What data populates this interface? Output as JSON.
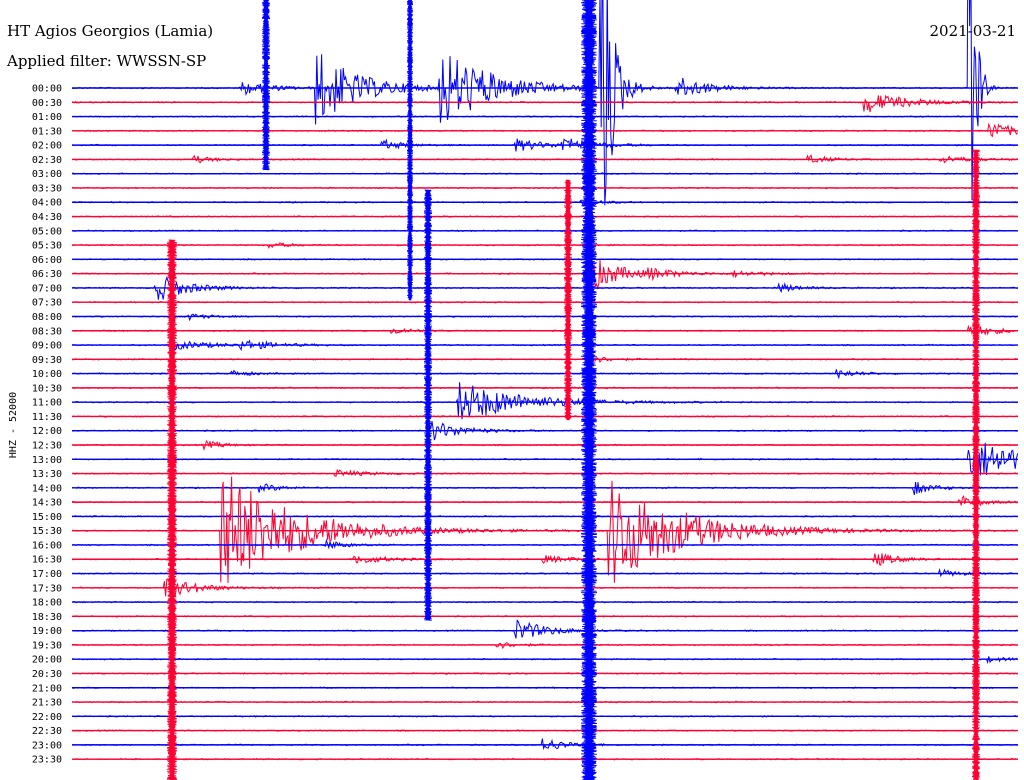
{
  "header": {
    "station": "HT Agios Georgios (Lamia)",
    "filter": "Applied filter: WWSSN-SP",
    "date": "2021-03-21"
  },
  "chart_data": {
    "type": "line",
    "title": "HT Agios Georgios (Lamia)",
    "subtitle": "Applied filter: WWSSN-SP",
    "ylabel": "HHZ - 52000",
    "xlabel": "",
    "date": "2021-03-21",
    "row_labels": [
      "00:00",
      "00:30",
      "01:00",
      "01:30",
      "02:00",
      "02:30",
      "03:00",
      "03:30",
      "04:00",
      "04:30",
      "05:00",
      "05:30",
      "06:00",
      "06:30",
      "07:00",
      "07:30",
      "08:00",
      "08:30",
      "09:00",
      "09:30",
      "10:00",
      "10:30",
      "11:00",
      "11:30",
      "12:00",
      "12:30",
      "13:00",
      "13:30",
      "14:00",
      "14:30",
      "15:00",
      "15:30",
      "16:00",
      "16:30",
      "17:00",
      "17:30",
      "18:00",
      "18:30",
      "19:00",
      "19:30",
      "20:00",
      "20:30",
      "21:00",
      "21:30",
      "22:00",
      "22:30",
      "23:00",
      "23:30"
    ],
    "colors": [
      "#0000ff",
      "#ff0033"
    ],
    "grid": false,
    "events": [
      {
        "row": 0,
        "x": 0.18,
        "amp": 1.0,
        "len": 0.03
      },
      {
        "row": 0,
        "x": 0.26,
        "amp": 5.5,
        "len": 0.04
      },
      {
        "row": 0,
        "x": 0.39,
        "amp": 6.0,
        "len": 0.05
      },
      {
        "row": 0,
        "x": 0.64,
        "amp": 1.6,
        "len": 0.03
      },
      {
        "row": 0,
        "x": 0.56,
        "amp": 30.0,
        "len": 0.01
      },
      {
        "row": 1,
        "x": 0.84,
        "amp": 1.5,
        "len": 0.04
      },
      {
        "row": 3,
        "x": 0.97,
        "amp": 1.2,
        "len": 0.03
      },
      {
        "row": 4,
        "x": 0.33,
        "amp": 0.7,
        "len": 0.02
      },
      {
        "row": 4,
        "x": 0.47,
        "amp": 0.9,
        "len": 0.03
      },
      {
        "row": 4,
        "x": 0.52,
        "amp": 1.0,
        "len": 0.03
      },
      {
        "row": 5,
        "x": 0.13,
        "amp": 0.5,
        "len": 0.02
      },
      {
        "row": 5,
        "x": 0.78,
        "amp": 0.6,
        "len": 0.02
      },
      {
        "row": 5,
        "x": 0.92,
        "amp": 0.5,
        "len": 0.03
      },
      {
        "row": 8,
        "x": 0.54,
        "amp": 0.5,
        "len": 0.02
      },
      {
        "row": 11,
        "x": 0.21,
        "amp": 0.4,
        "len": 0.02
      },
      {
        "row": 13,
        "x": 0.55,
        "amp": 2.5,
        "len": 0.03
      },
      {
        "row": 13,
        "x": 0.61,
        "amp": 0.6,
        "len": 0.03
      },
      {
        "row": 13,
        "x": 0.7,
        "amp": 0.4,
        "len": 0.03
      },
      {
        "row": 14,
        "x": 0.09,
        "amp": 2.0,
        "len": 0.03
      },
      {
        "row": 14,
        "x": 0.75,
        "amp": 0.6,
        "len": 0.02
      },
      {
        "row": 16,
        "x": 0.12,
        "amp": 0.5,
        "len": 0.02
      },
      {
        "row": 17,
        "x": 0.34,
        "amp": 0.5,
        "len": 0.02
      },
      {
        "row": 17,
        "x": 0.95,
        "amp": 0.8,
        "len": 0.03
      },
      {
        "row": 18,
        "x": 0.11,
        "amp": 0.6,
        "len": 0.04
      },
      {
        "row": 18,
        "x": 0.18,
        "amp": 0.7,
        "len": 0.03
      },
      {
        "row": 19,
        "x": 0.55,
        "amp": 0.5,
        "len": 0.02
      },
      {
        "row": 20,
        "x": 0.17,
        "amp": 0.4,
        "len": 0.02
      },
      {
        "row": 20,
        "x": 0.81,
        "amp": 0.6,
        "len": 0.02
      },
      {
        "row": 22,
        "x": 0.41,
        "amp": 3.0,
        "len": 0.06
      },
      {
        "row": 24,
        "x": 0.38,
        "amp": 1.5,
        "len": 0.03
      },
      {
        "row": 25,
        "x": 0.14,
        "amp": 0.6,
        "len": 0.02
      },
      {
        "row": 26,
        "x": 0.95,
        "amp": 3.5,
        "len": 0.05
      },
      {
        "row": 27,
        "x": 0.28,
        "amp": 0.5,
        "len": 0.03
      },
      {
        "row": 28,
        "x": 0.2,
        "amp": 0.6,
        "len": 0.02
      },
      {
        "row": 28,
        "x": 0.89,
        "amp": 1.0,
        "len": 0.02
      },
      {
        "row": 29,
        "x": 0.94,
        "amp": 0.9,
        "len": 0.02
      },
      {
        "row": 31,
        "x": 0.16,
        "amp": 9.0,
        "len": 0.07
      },
      {
        "row": 31,
        "x": 0.57,
        "amp": 8.0,
        "len": 0.07
      },
      {
        "row": 32,
        "x": 0.27,
        "amp": 0.6,
        "len": 0.02
      },
      {
        "row": 33,
        "x": 0.3,
        "amp": 0.7,
        "len": 0.03
      },
      {
        "row": 33,
        "x": 0.5,
        "amp": 0.5,
        "len": 0.03
      },
      {
        "row": 33,
        "x": 0.85,
        "amp": 1.1,
        "len": 0.02
      },
      {
        "row": 34,
        "x": 0.92,
        "amp": 0.5,
        "len": 0.02
      },
      {
        "row": 35,
        "x": 0.1,
        "amp": 1.6,
        "len": 0.03
      },
      {
        "row": 38,
        "x": 0.47,
        "amp": 1.6,
        "len": 0.03
      },
      {
        "row": 39,
        "x": 0.45,
        "amp": 0.5,
        "len": 0.02
      },
      {
        "row": 40,
        "x": 0.97,
        "amp": 0.4,
        "len": 0.02
      },
      {
        "row": 46,
        "x": 0.5,
        "amp": 1.0,
        "len": 0.02
      },
      {
        "row": 0,
        "x": 0.95,
        "amp": 40.0,
        "len": 0.005
      }
    ]
  }
}
